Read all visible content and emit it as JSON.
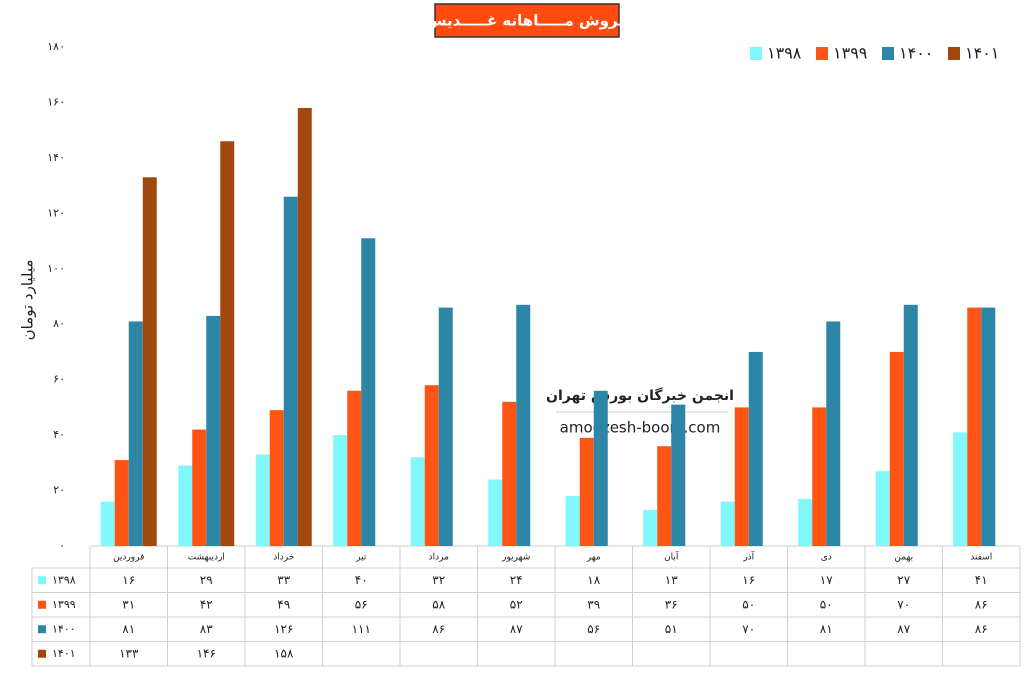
{
  "chart_data": {
    "type": "bar",
    "title": "فروش مـــــاهانه غـــــدیس",
    "y_label": "میلیارد تومان",
    "watermark": [
      "انجمن خبرگان بورس تهران",
      "amoozesh-boors.com"
    ],
    "categories": [
      "فروردین",
      "اردیبهشت",
      "خرداد",
      "تیر",
      "مرداد",
      "شهریور",
      "مهر",
      "آبان",
      "آذر",
      "دی",
      "بهمن",
      "اسفند"
    ],
    "series": [
      {
        "name": "۱۳۹۸",
        "color": "#80f8fc",
        "values": [
          16,
          29,
          33,
          40,
          32,
          24,
          18,
          13,
          16,
          17,
          27,
          41
        ],
        "value_labels": [
          "۱۶",
          "۲۹",
          "۳۳",
          "۴۰",
          "۳۲",
          "۲۴",
          "۱۸",
          "۱۳",
          "۱۶",
          "۱۷",
          "۲۷",
          "۴۱"
        ]
      },
      {
        "name": "۱۳۹۹",
        "color": "#ff5514",
        "values": [
          31,
          42,
          49,
          56,
          58,
          52,
          39,
          36,
          50,
          50,
          70,
          86
        ],
        "value_labels": [
          "۳۱",
          "۴۲",
          "۴۹",
          "۵۶",
          "۵۸",
          "۵۲",
          "۳۹",
          "۳۶",
          "۵۰",
          "۵۰",
          "۷۰",
          "۸۶"
        ]
      },
      {
        "name": "۱۴۰۰",
        "color": "#2e86a7",
        "values": [
          81,
          83,
          126,
          111,
          86,
          87,
          56,
          51,
          70,
          81,
          87,
          86
        ],
        "value_labels": [
          "۸۱",
          "۸۳",
          "۱۲۶",
          "۱۱۱",
          "۸۶",
          "۸۷",
          "۵۶",
          "۵۱",
          "۷۰",
          "۸۱",
          "۸۷",
          "۸۶"
        ]
      },
      {
        "name": "۱۴۰۱",
        "color": "#a1480f",
        "values": [
          133,
          146,
          158,
          null,
          null,
          null,
          null,
          null,
          null,
          null,
          null,
          null
        ],
        "value_labels": [
          "۱۳۳",
          "۱۴۶",
          "۱۵۸",
          null,
          null,
          null,
          null,
          null,
          null,
          null,
          null,
          null
        ]
      }
    ],
    "ylim": [
      0,
      180
    ],
    "yticks": [
      {
        "value": 0,
        "label": "۰"
      },
      {
        "value": 20,
        "label": "۲۰"
      },
      {
        "value": 40,
        "label": "۴۰"
      },
      {
        "value": 60,
        "label": "۶۰"
      },
      {
        "value": 80,
        "label": "۸۰"
      },
      {
        "value": 100,
        "label": "۱۰۰"
      },
      {
        "value": 120,
        "label": "۱۲۰"
      },
      {
        "value": 140,
        "label": "۱۴۰"
      },
      {
        "value": 160,
        "label": "۱۶۰"
      },
      {
        "value": 180,
        "label": "۱۸۰"
      }
    ],
    "legend": "top-right",
    "grid": false
  }
}
